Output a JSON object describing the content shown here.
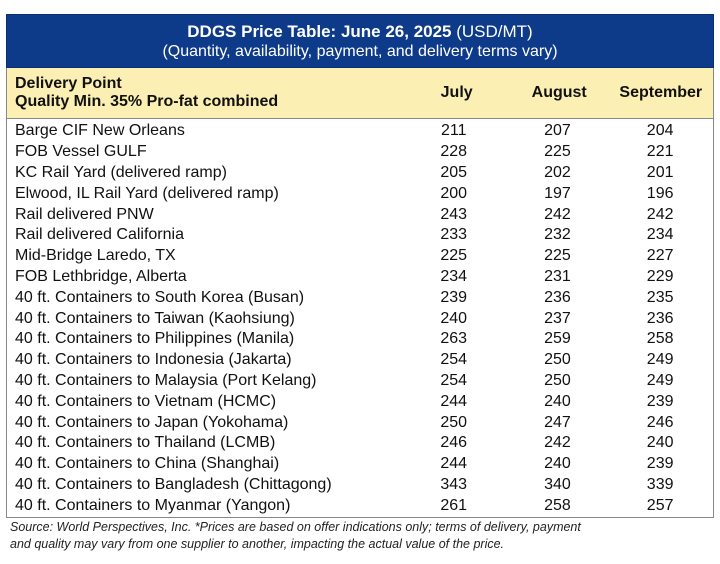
{
  "title": {
    "bold": "DDGS Price Table: June 26, 2025",
    "unit": " (USD/MT)",
    "subtitle": "(Quantity, availability, payment, and delivery terms vary)"
  },
  "header": {
    "line1": "Delivery Point",
    "line2": "Quality Min. 35% Pro-fat combined",
    "months": [
      "July",
      "August",
      "September"
    ]
  },
  "rows": [
    {
      "point": "Barge CIF New Orleans",
      "july": "211",
      "august": "207",
      "september": "204"
    },
    {
      "point": "FOB Vessel GULF",
      "july": "228",
      "august": "225",
      "september": "221"
    },
    {
      "point": "KC Rail Yard (delivered ramp)",
      "july": "205",
      "august": "202",
      "september": "201"
    },
    {
      "point": "Elwood, IL Rail Yard (delivered ramp)",
      "july": "200",
      "august": "197",
      "september": "196"
    },
    {
      "point": "Rail delivered PNW",
      "july": "243",
      "august": "242",
      "september": "242"
    },
    {
      "point": "Rail delivered California",
      "july": "233",
      "august": "232",
      "september": "234"
    },
    {
      "point": "Mid-Bridge Laredo, TX",
      "july": "225",
      "august": "225",
      "september": "227"
    },
    {
      "point": "FOB Lethbridge, Alberta",
      "july": "234",
      "august": "231",
      "september": "229"
    },
    {
      "point": "40 ft. Containers to South Korea (Busan)",
      "july": "239",
      "august": "236",
      "september": "235"
    },
    {
      "point": "40 ft. Containers to Taiwan (Kaohsiung)",
      "july": "240",
      "august": "237",
      "september": "236"
    },
    {
      "point": "40 ft. Containers to Philippines (Manila)",
      "july": "263",
      "august": "259",
      "september": "258"
    },
    {
      "point": "40 ft. Containers to Indonesia (Jakarta)",
      "july": "254",
      "august": "250",
      "september": "249"
    },
    {
      "point": "40 ft. Containers to Malaysia (Port Kelang)",
      "july": "254",
      "august": "250",
      "september": "249"
    },
    {
      "point": "40 ft. Containers to Vietnam (HCMC)",
      "july": "244",
      "august": "240",
      "september": "239"
    },
    {
      "point": "40 ft. Containers to Japan (Yokohama)",
      "july": "250",
      "august": "247",
      "september": "246"
    },
    {
      "point": "40 ft. Containers to Thailand (LCMB)",
      "july": "246",
      "august": "242",
      "september": "240"
    },
    {
      "point": "40 ft. Containers to China (Shanghai)",
      "july": "244",
      "august": "240",
      "september": "239"
    },
    {
      "point": "40 ft. Containers to Bangladesh (Chittagong)",
      "july": "343",
      "august": "340",
      "september": "339"
    },
    {
      "point": "40 ft. Containers to Myanmar (Yangon)",
      "july": "261",
      "august": "258",
      "september": "257"
    }
  ],
  "footnote": {
    "line1": "Source: World Perspectives, Inc. *Prices are based on offer indications only; terms of delivery, payment",
    "line2": "and quality may vary from one supplier to another, impacting the actual value of the price."
  },
  "colors": {
    "title_bg": "#0e3a8a",
    "header_bg": "#fcefb4"
  }
}
